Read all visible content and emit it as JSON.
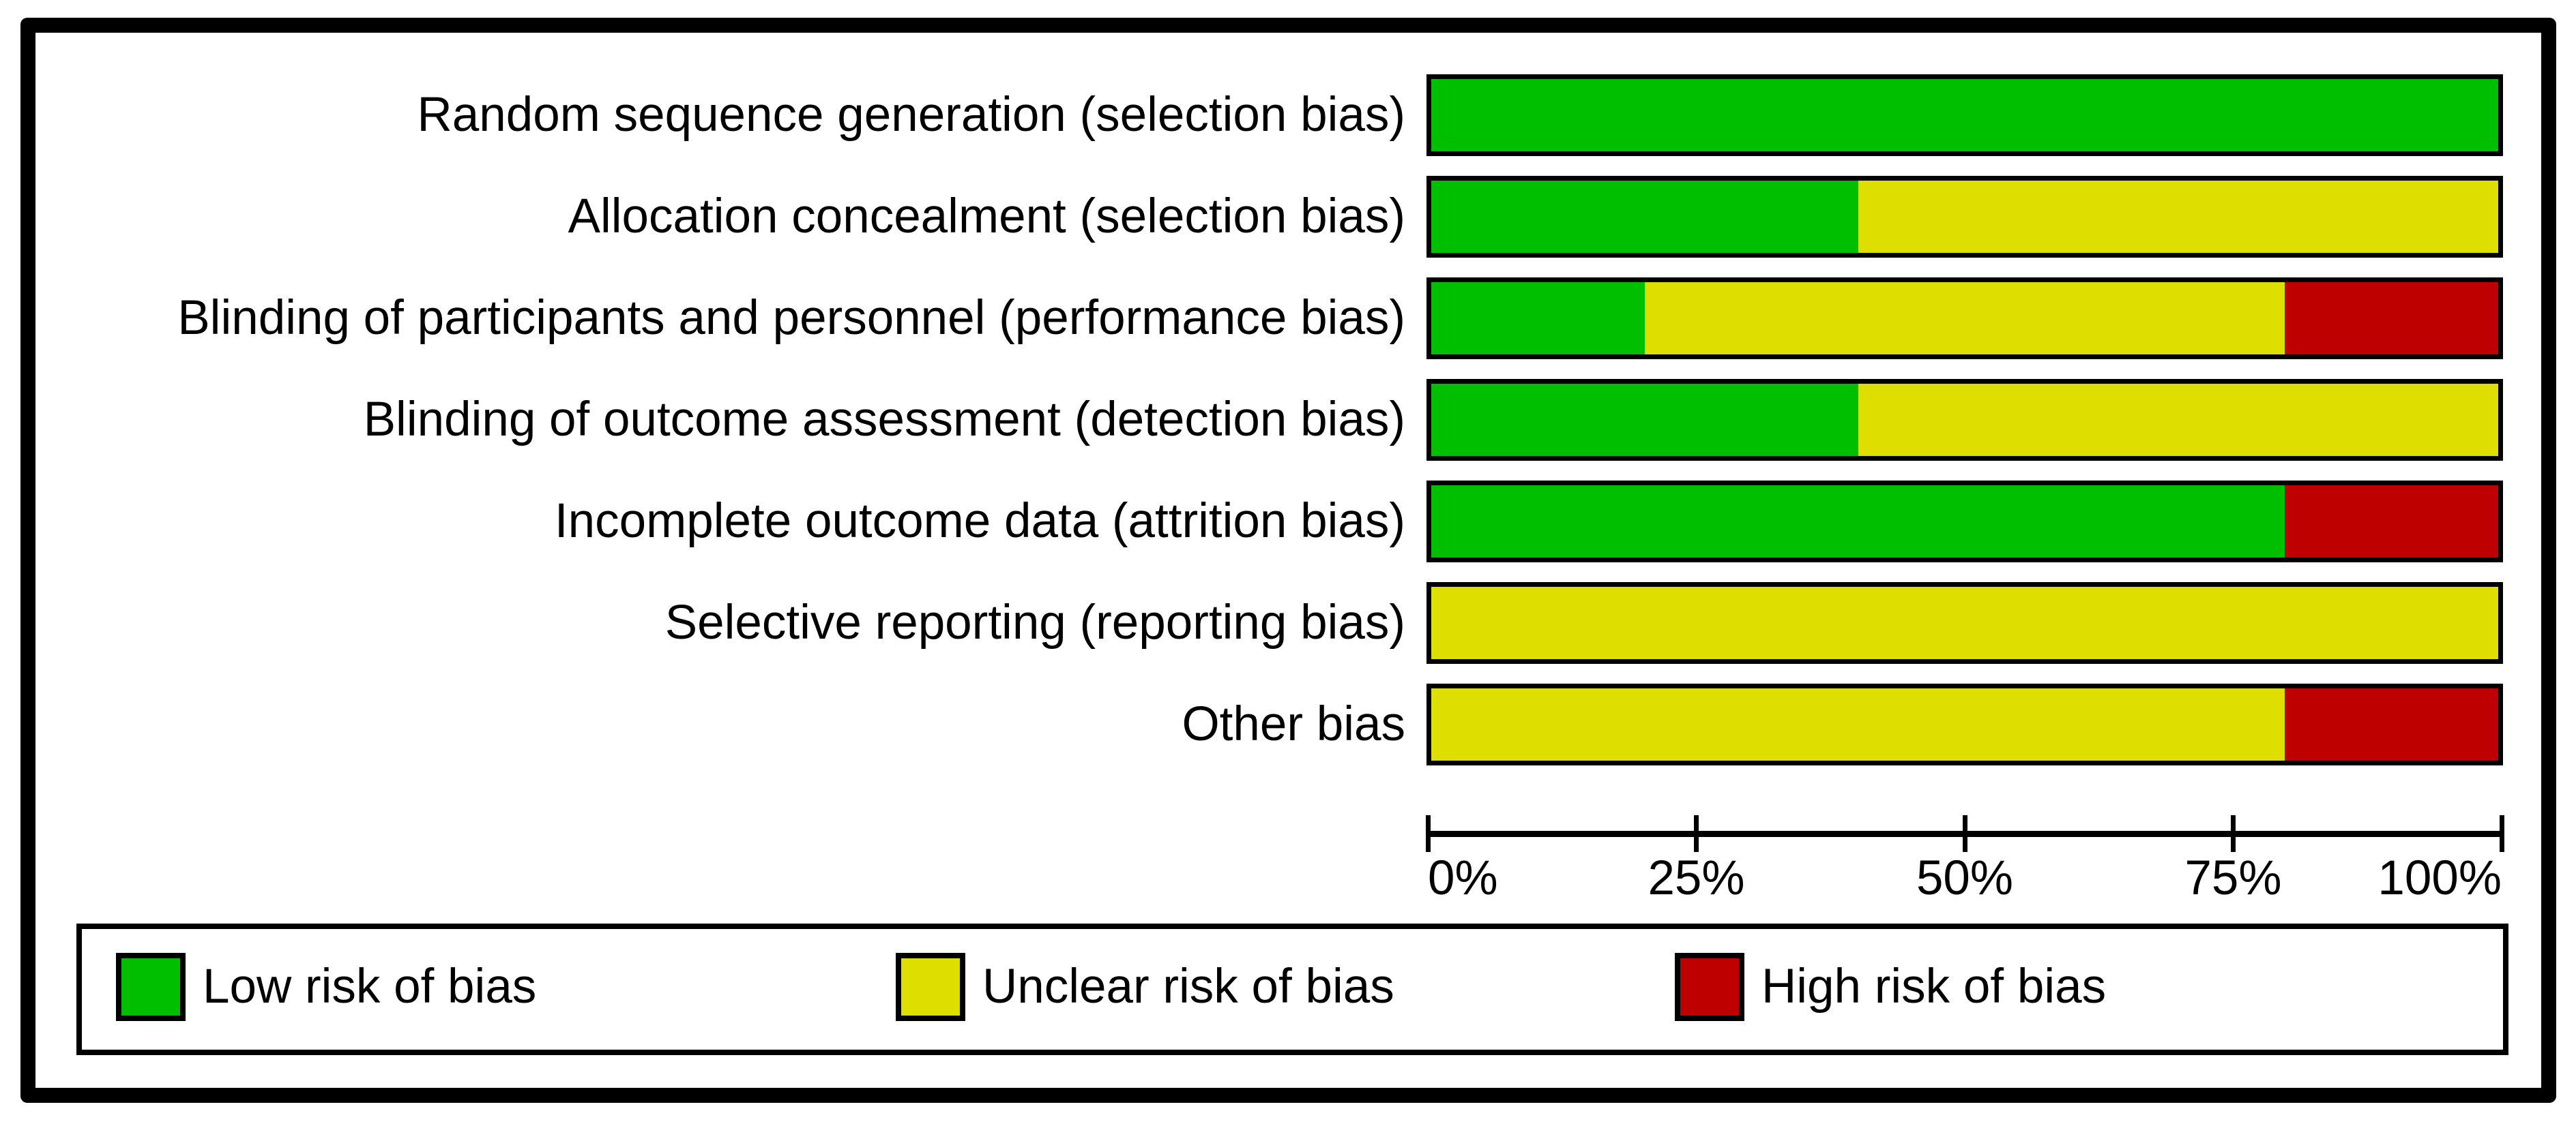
{
  "chart_data": {
    "type": "bar",
    "stacked": true,
    "orientation": "horizontal",
    "title": "",
    "xlabel": "",
    "ylabel": "",
    "grid": false,
    "legend_position": "bottom",
    "x_range": [
      0,
      100
    ],
    "x_ticks": [
      "0%",
      "25%",
      "50%",
      "75%",
      "100%"
    ],
    "categories": [
      "Random sequence generation (selection bias)",
      "Allocation concealment (selection bias)",
      "Blinding of participants and personnel (performance bias)",
      "Blinding of outcome assessment (detection bias)",
      "Incomplete outcome data (attrition bias)",
      "Selective reporting (reporting bias)",
      "Other bias"
    ],
    "series": [
      {
        "name": "Low risk of bias",
        "color": "#00BE00",
        "values": [
          100,
          40,
          20,
          40,
          80,
          0,
          0
        ]
      },
      {
        "name": "Unclear risk of bias",
        "color": "#DEDE00",
        "values": [
          0,
          60,
          60,
          60,
          0,
          100,
          80
        ]
      },
      {
        "name": "High risk of bias",
        "color": "#BE0000",
        "values": [
          0,
          0,
          20,
          0,
          20,
          0,
          20
        ]
      }
    ]
  }
}
